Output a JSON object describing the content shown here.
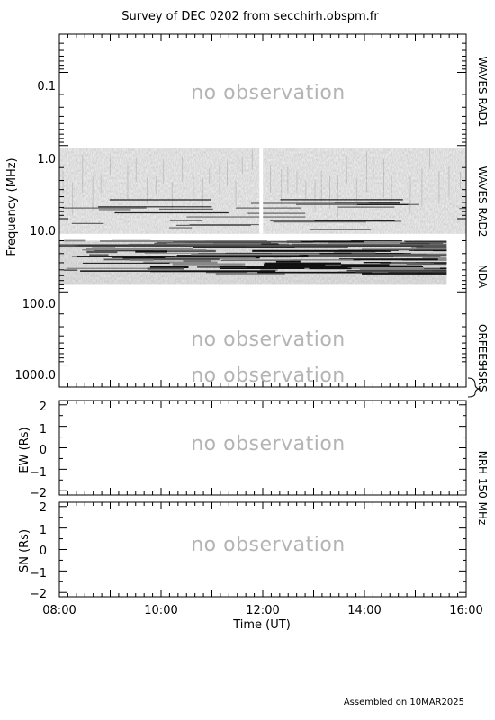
{
  "chart_data": [
    {
      "type": "heatmap",
      "panel": "dynamic-spectrum",
      "title": "Survey of  DEC 0202 from secchirh.obspm.fr",
      "ylabel": "Frequency (MHz)",
      "yscale": "log",
      "ylim": [
        0.03,
        2000
      ],
      "yticks": [
        "0.1",
        "1.0",
        "10.0",
        "100.0",
        "1000.0"
      ],
      "ytick_values": [
        0.1,
        1,
        10,
        100,
        1000
      ],
      "instruments": [
        {
          "label": "WAVES RAD1",
          "freq_range_mhz": [
            0.03,
            1.0
          ],
          "observed": false
        },
        {
          "label": "WAVES RAD2",
          "freq_range_mhz": [
            1.0,
            16.0
          ],
          "observed": true
        },
        {
          "label": "NDA",
          "freq_range_mhz": [
            20,
            80
          ],
          "observed": true
        },
        {
          "label": "ORFEES",
          "freq_range_mhz": [
            140,
            1000
          ],
          "observed": false
        },
        {
          "label": "HSRS",
          "freq_range_mhz": [
            1000,
            2000
          ],
          "observed": false
        }
      ],
      "data_coverage": [
        {
          "instrument": "WAVES RAD2",
          "time_range_ut": [
            "08:00",
            "16:00"
          ],
          "freq_range_mhz": [
            1.1,
            16.0
          ]
        },
        {
          "instrument": "NDA",
          "time_range_ut": [
            "08:00",
            "15:37"
          ],
          "freq_range_mhz": [
            20,
            80
          ]
        }
      ],
      "annotations": [
        "no observation",
        "no observation",
        "no observation"
      ]
    },
    {
      "type": "scatter",
      "panel": "nrh-ew",
      "ylabel": "EW (Rs)",
      "ylim": [
        -2.2,
        2.2
      ],
      "yticks": [
        "2",
        "1",
        "0",
        "−1",
        "−2"
      ],
      "ytick_values": [
        2,
        1,
        0,
        -1,
        -2
      ],
      "annotation": "no observation"
    },
    {
      "type": "scatter",
      "panel": "nrh-sn",
      "ylabel": "SN (Rs)",
      "ylim": [
        -2.2,
        2.2
      ],
      "yticks": [
        "2",
        "1",
        "0",
        "−1",
        "−2"
      ],
      "ytick_values": [
        2,
        1,
        0,
        -1,
        -2
      ],
      "annotation": "no observation",
      "xlabel": "Time (UT)",
      "xlim": [
        "08:00",
        "16:00"
      ],
      "xticks": [
        "08:00",
        "10:00",
        "12:00",
        "14:00",
        "16:00"
      ]
    }
  ],
  "side_labels": {
    "rad1": "WAVES RAD1",
    "rad2": "WAVES RAD2",
    "nda": "NDA",
    "orfees": "ORFEES",
    "hsrs": "HSRS",
    "nrh": "NRH 150 MHz"
  },
  "footer": "Assembled on 10MAR2025"
}
